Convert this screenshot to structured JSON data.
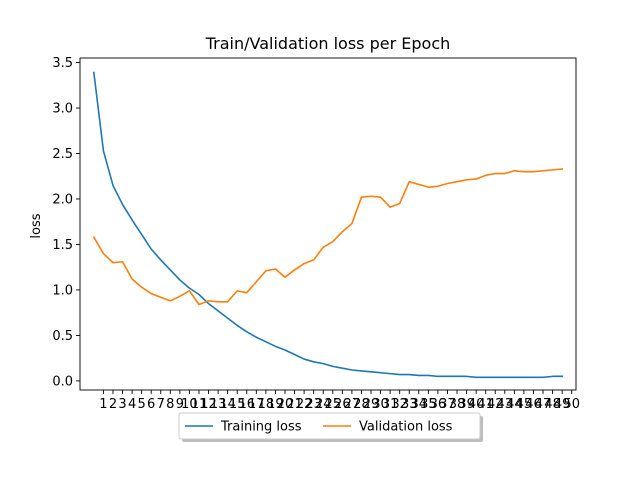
{
  "chart_data": {
    "type": "line",
    "title": "Train/Validation loss per Epoch",
    "xlabel": "",
    "ylabel": "loss",
    "xlim": [
      -1.45,
      50.45
    ],
    "ylim": [
      -0.1,
      3.55
    ],
    "x_ticks": [
      1,
      2,
      3,
      4,
      5,
      6,
      7,
      8,
      9,
      10,
      11,
      12,
      13,
      14,
      15,
      16,
      17,
      18,
      19,
      20,
      21,
      22,
      23,
      24,
      25,
      26,
      27,
      28,
      29,
      30,
      31,
      32,
      33,
      34,
      35,
      36,
      37,
      38,
      39,
      40,
      41,
      42,
      43,
      44,
      45,
      46,
      47,
      48,
      49,
      50
    ],
    "y_ticks": [
      0.0,
      0.5,
      1.0,
      1.5,
      2.0,
      2.5,
      3.0,
      3.5
    ],
    "y_tick_labels": [
      "0.0",
      "0.5",
      "1.0",
      "1.5",
      "2.0",
      "2.5",
      "3.0",
      "3.5"
    ],
    "grid": false,
    "legend_position": "bottom-center, below axes",
    "x": [
      0,
      1,
      2,
      3,
      4,
      5,
      6,
      7,
      8,
      9,
      10,
      11,
      12,
      13,
      14,
      15,
      16,
      17,
      18,
      19,
      20,
      21,
      22,
      23,
      24,
      25,
      26,
      27,
      28,
      29,
      30,
      31,
      32,
      33,
      34,
      35,
      36,
      37,
      38,
      39,
      40,
      41,
      42,
      43,
      44,
      45,
      46,
      47,
      48,
      49
    ],
    "series": [
      {
        "name": "Training loss",
        "color": "#1f77b4",
        "values": [
          3.39,
          2.53,
          2.15,
          1.94,
          1.77,
          1.61,
          1.45,
          1.33,
          1.22,
          1.11,
          1.02,
          0.95,
          0.85,
          0.77,
          0.69,
          0.61,
          0.54,
          0.48,
          0.43,
          0.38,
          0.34,
          0.29,
          0.24,
          0.21,
          0.19,
          0.16,
          0.14,
          0.12,
          0.11,
          0.1,
          0.09,
          0.08,
          0.07,
          0.07,
          0.06,
          0.06,
          0.05,
          0.05,
          0.05,
          0.05,
          0.04,
          0.04,
          0.04,
          0.04,
          0.04,
          0.04,
          0.04,
          0.04,
          0.05,
          0.05
        ]
      },
      {
        "name": "Validation loss",
        "color": "#ff7f0e",
        "values": [
          1.58,
          1.4,
          1.3,
          1.31,
          1.12,
          1.03,
          0.96,
          0.92,
          0.88,
          0.93,
          0.99,
          0.84,
          0.88,
          0.87,
          0.87,
          0.99,
          0.97,
          1.09,
          1.21,
          1.23,
          1.14,
          1.22,
          1.29,
          1.33,
          1.47,
          1.53,
          1.64,
          1.73,
          2.02,
          2.03,
          2.02,
          1.91,
          1.95,
          2.19,
          2.16,
          2.13,
          2.14,
          2.17,
          2.19,
          2.21,
          2.22,
          2.26,
          2.28,
          2.28,
          2.31,
          2.3,
          2.3,
          2.31,
          2.32,
          2.33
        ]
      }
    ]
  }
}
